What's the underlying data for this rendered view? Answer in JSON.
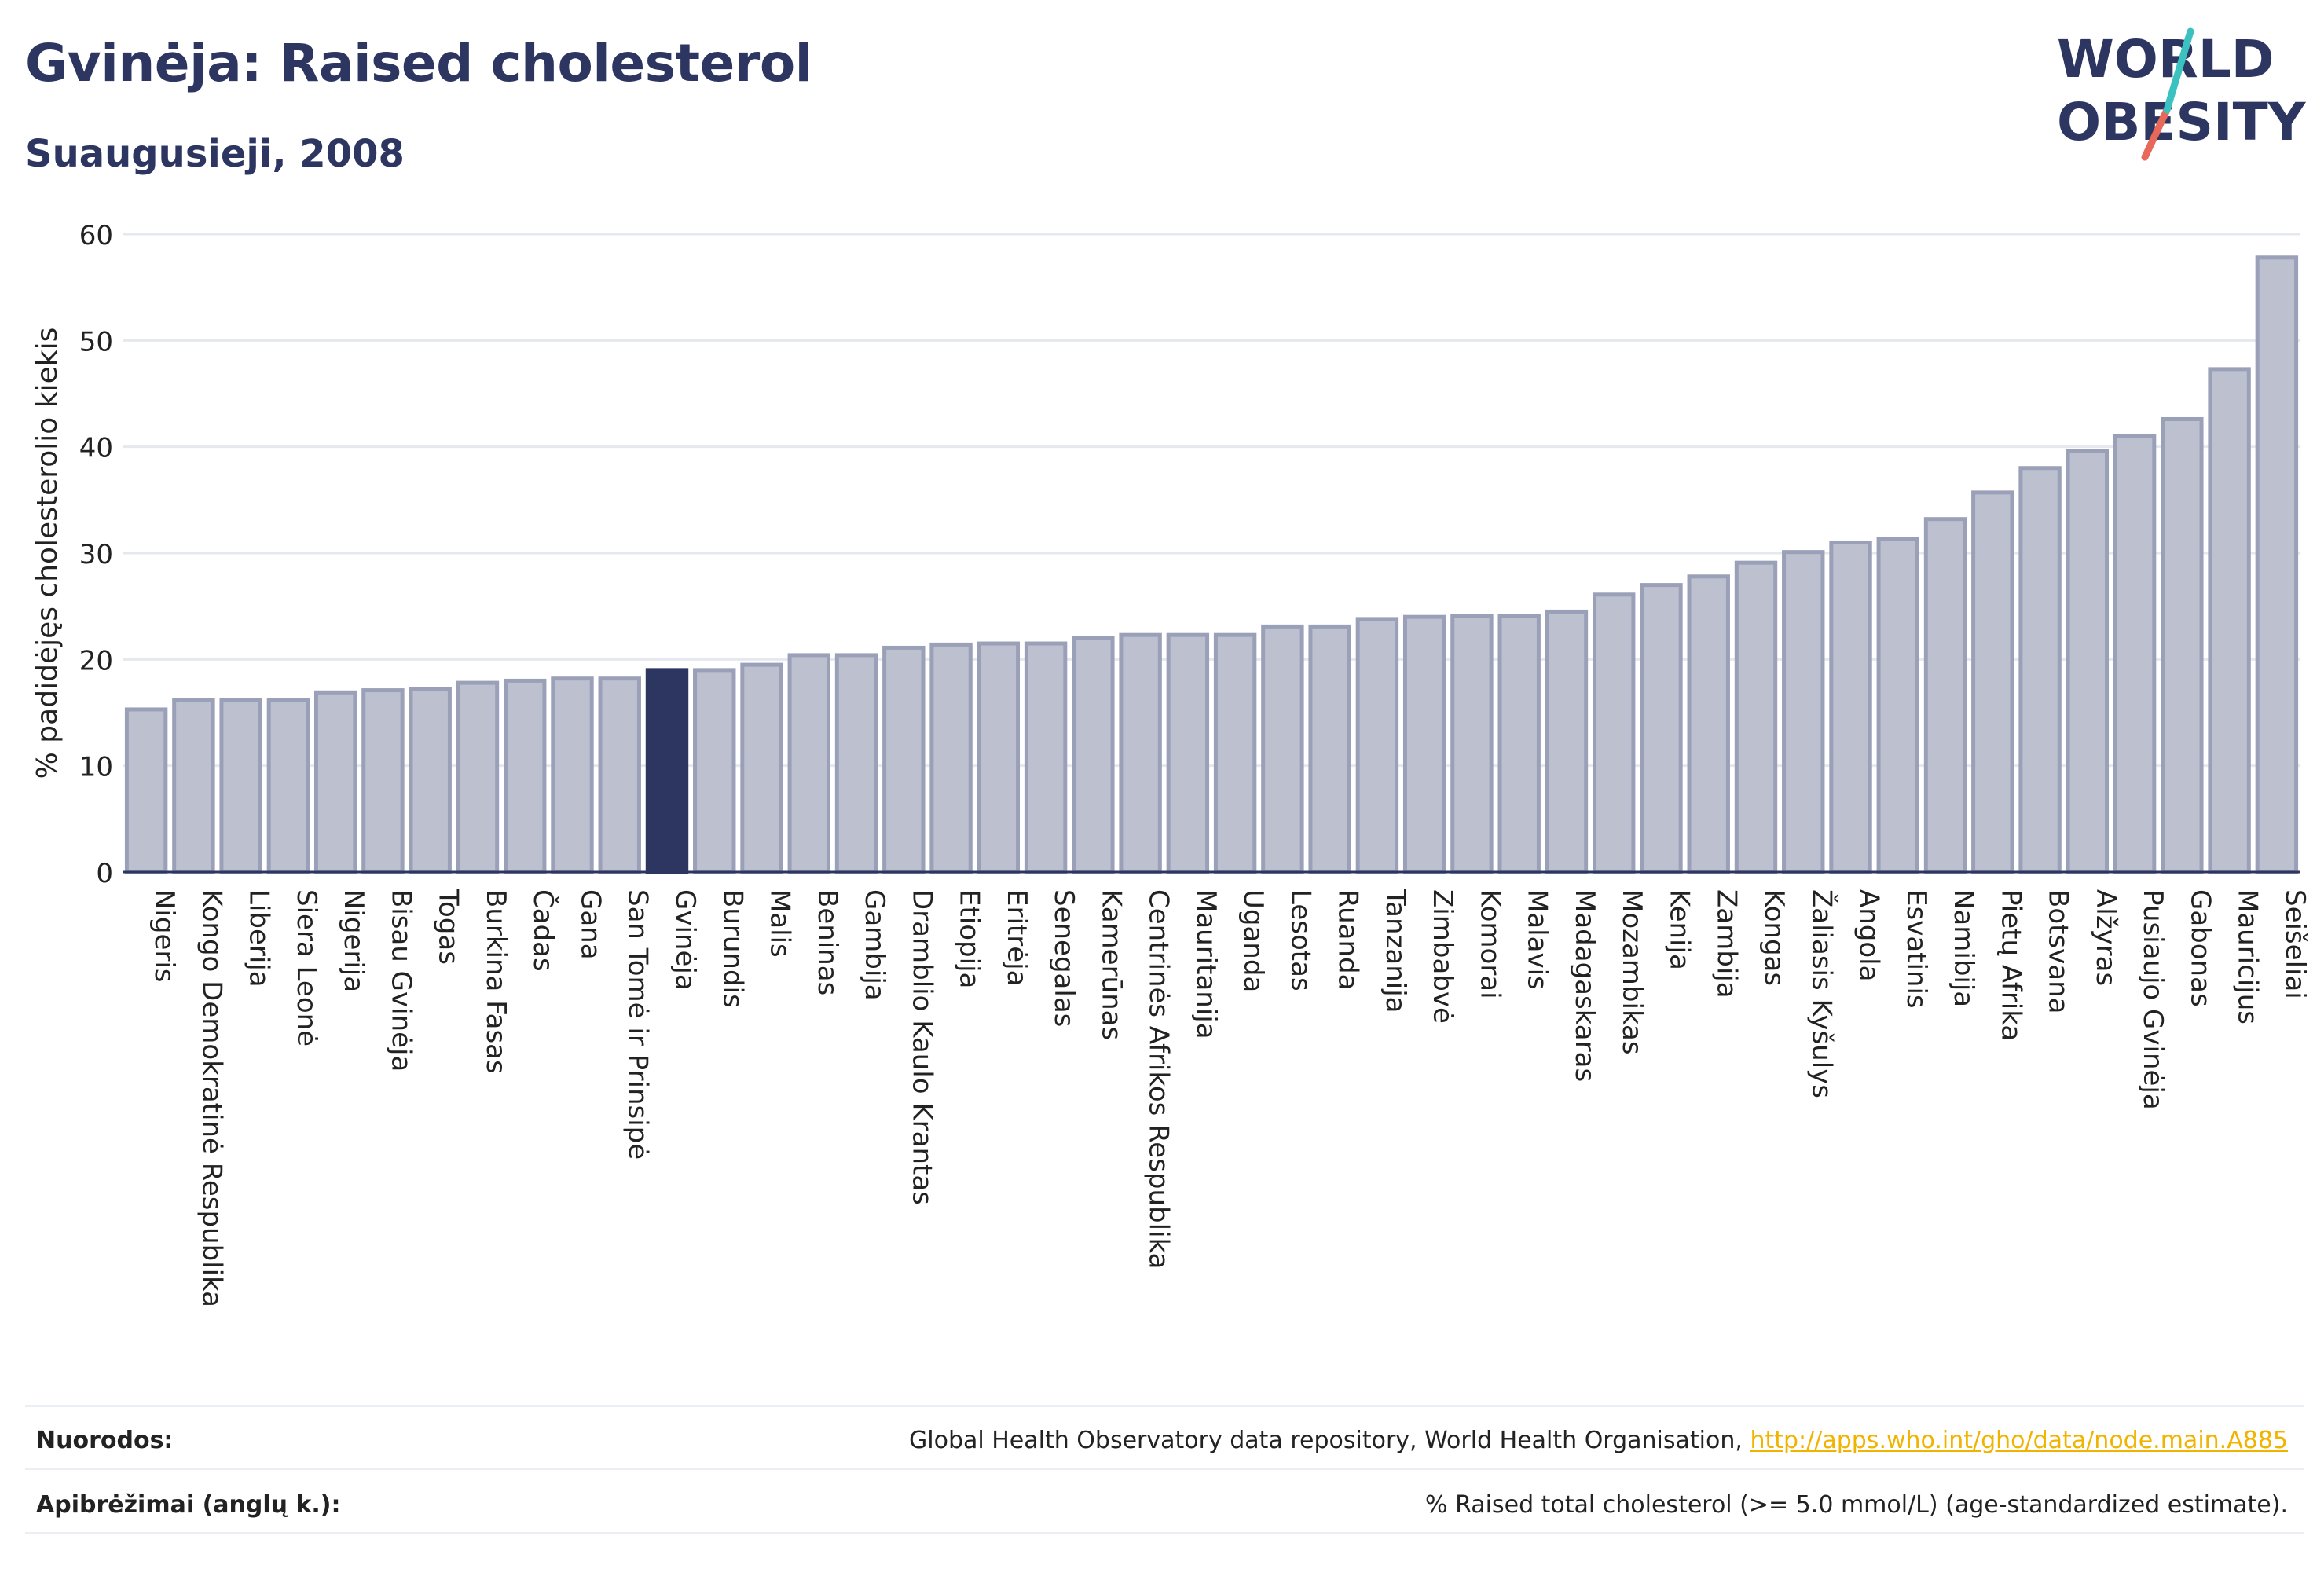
{
  "header": {
    "title": "Gvinėja: Raised cholesterol",
    "subtitle": "Suaugusieji, 2008"
  },
  "logo": {
    "line1": "WORLD",
    "line2": "OBESITY",
    "colors": {
      "text": "#2d3561",
      "slash_teal": "#3cc1c1",
      "slash_red": "#e8685a"
    }
  },
  "chart_data": {
    "type": "bar",
    "ylabel": "% padidėjęs cholesterolio kiekis",
    "xlabel": "",
    "ylim": [
      0,
      60
    ],
    "yticks": [
      0,
      10,
      20,
      30,
      40,
      50,
      60
    ],
    "grid": true,
    "highlight": "Gvinėja",
    "colors": {
      "bar": "#bcc0cf",
      "bar_border": "#9aa0b8",
      "highlight": "#2d3561",
      "grid": "#e6e8ef",
      "axis": "#2d3561"
    },
    "categories": [
      "Nigeris",
      "Kongo Demokratinė Respublika",
      "Liberija",
      "Siera Leonė",
      "Nigerija",
      "Bisau Gvinėja",
      "Togas",
      "Burkina Fasas",
      "Čadas",
      "Gana",
      "San Tomė ir Prinsipė",
      "Gvinėja",
      "Burundis",
      "Malis",
      "Beninas",
      "Gambija",
      "Dramblio Kaulo Krantas",
      "Etiopija",
      "Eritrėja",
      "Senegalas",
      "Kamerūnas",
      "Centrinės Afrikos Respublika",
      "Mauritanija",
      "Uganda",
      "Lesotas",
      "Ruanda",
      "Tanzanija",
      "Zimbabvė",
      "Komorai",
      "Malavis",
      "Madagaskaras",
      "Mozambikas",
      "Kenija",
      "Zambija",
      "Kongas",
      "Žaliasis Kyšulys",
      "Angola",
      "Esvatinis",
      "Namibija",
      "Pietų Afrika",
      "Botsvana",
      "Alžyras",
      "Pusiaujo Gvinėja",
      "Gabonas",
      "Mauricijus",
      "Seišeliai"
    ],
    "values": [
      15.3,
      16.2,
      16.2,
      16.2,
      16.9,
      17.1,
      17.2,
      17.8,
      18.0,
      18.2,
      18.2,
      19.0,
      19.0,
      19.5,
      20.4,
      20.4,
      21.1,
      21.4,
      21.5,
      21.5,
      22.0,
      22.3,
      22.3,
      22.3,
      23.1,
      23.1,
      23.8,
      24.0,
      24.1,
      24.1,
      24.5,
      26.1,
      27.0,
      27.8,
      29.1,
      30.1,
      31.0,
      31.3,
      33.2,
      35.7,
      38.0,
      39.6,
      41.0,
      42.6,
      47.3,
      57.8
    ]
  },
  "footer": {
    "sources_label": "Nuorodos:",
    "sources_text": "Global Health Observatory data repository, World Health Organisation, ",
    "sources_link": "http://apps.who.int/gho/data/node.main.A885",
    "definitions_label": "Apibrėžimai (anglų k.):",
    "definitions_text": "% Raised total cholesterol (>= 5.0 mmol/L) (age-standardized estimate)."
  }
}
